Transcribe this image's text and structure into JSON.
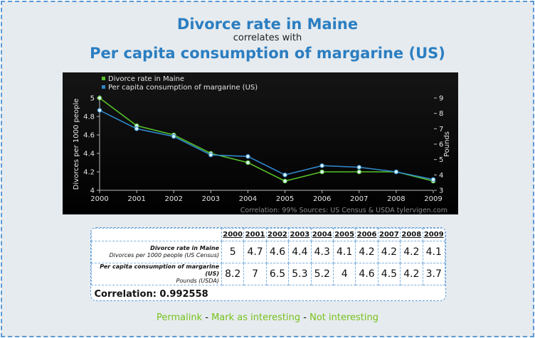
{
  "title": "Divorce rate in Maine",
  "connector": "correlates with",
  "title2": "Per capita consumption of margarine (US)",
  "chart_data": {
    "type": "line",
    "x": [
      2000,
      2001,
      2002,
      2003,
      2004,
      2005,
      2006,
      2007,
      2008,
      2009
    ],
    "series": [
      {
        "name": "Divorce rate in Maine",
        "axis": "left",
        "color": "#57c22a",
        "values": [
          5,
          4.7,
          4.6,
          4.4,
          4.3,
          4.1,
          4.2,
          4.2,
          4.2,
          4.1
        ]
      },
      {
        "name": "Per capita consumption of margarine (US)",
        "axis": "right",
        "color": "#2f86c8",
        "values": [
          8.2,
          7,
          6.5,
          5.3,
          5.2,
          4,
          4.6,
          4.5,
          4.2,
          3.7
        ]
      }
    ],
    "ylabel_left": "Divorces per 1000 people",
    "ylabel_right": "Pounds",
    "ylim_left": [
      4,
      5
    ],
    "ylim_right": [
      3,
      9
    ],
    "yticks_left": [
      "4",
      "4.2",
      "4.4",
      "4.6",
      "4.8",
      "5"
    ],
    "yticks_right": [
      "3",
      "4",
      "5",
      "6",
      "7",
      "8",
      "9"
    ],
    "xticks": [
      "2000",
      "2001",
      "2002",
      "2003",
      "2004",
      "2005",
      "2006",
      "2007",
      "2008",
      "2009"
    ],
    "legend_position": "top-left",
    "credit": "Correlation: 99%   Sources: US Census & USDA  tylervigen.com"
  },
  "table": {
    "years": [
      "2000",
      "2001",
      "2002",
      "2003",
      "2004",
      "2005",
      "2006",
      "2007",
      "2008",
      "2009"
    ],
    "row1_label": "Divorce rate in Maine",
    "row1_sub": "Divorces per 1000 people (US Census)",
    "row1_values": [
      "5",
      "4.7",
      "4.6",
      "4.4",
      "4.3",
      "4.1",
      "4.2",
      "4.2",
      "4.2",
      "4.1"
    ],
    "row2_label": "Per capita consumption of margarine (US)",
    "row2_sub": "Pounds (USDA)",
    "row2_values": [
      "8.2",
      "7",
      "6.5",
      "5.3",
      "5.2",
      "4",
      "4.6",
      "4.5",
      "4.2",
      "3.7"
    ],
    "correlation": "Correlation: 0.992558"
  },
  "footer": {
    "permalink": "Permalink",
    "sep": "-",
    "interesting": "Mark as interesting",
    "not_interesting": "Not interesting"
  }
}
